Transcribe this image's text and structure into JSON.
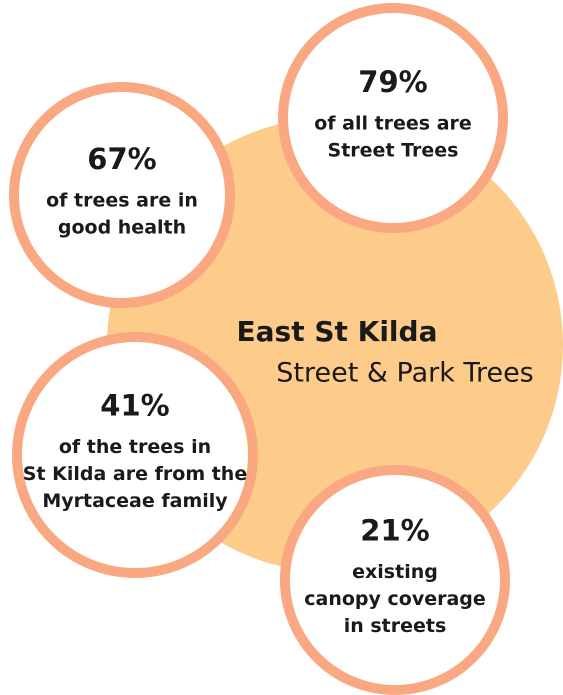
{
  "title": "East St Kilda",
  "subtitle": "Street & Park Trees",
  "stats": [
    {
      "value": "79%",
      "lines": [
        "of all trees are",
        "Street Trees"
      ]
    },
    {
      "value": "67%",
      "lines": [
        "of trees are in",
        "good health"
      ]
    },
    {
      "value": "41%",
      "lines": [
        "of the trees in",
        "St Kilda are from the",
        "Myrtaceae family"
      ]
    },
    {
      "value": "21%",
      "lines": [
        "existing",
        "canopy coverage",
        "in streets"
      ]
    }
  ]
}
